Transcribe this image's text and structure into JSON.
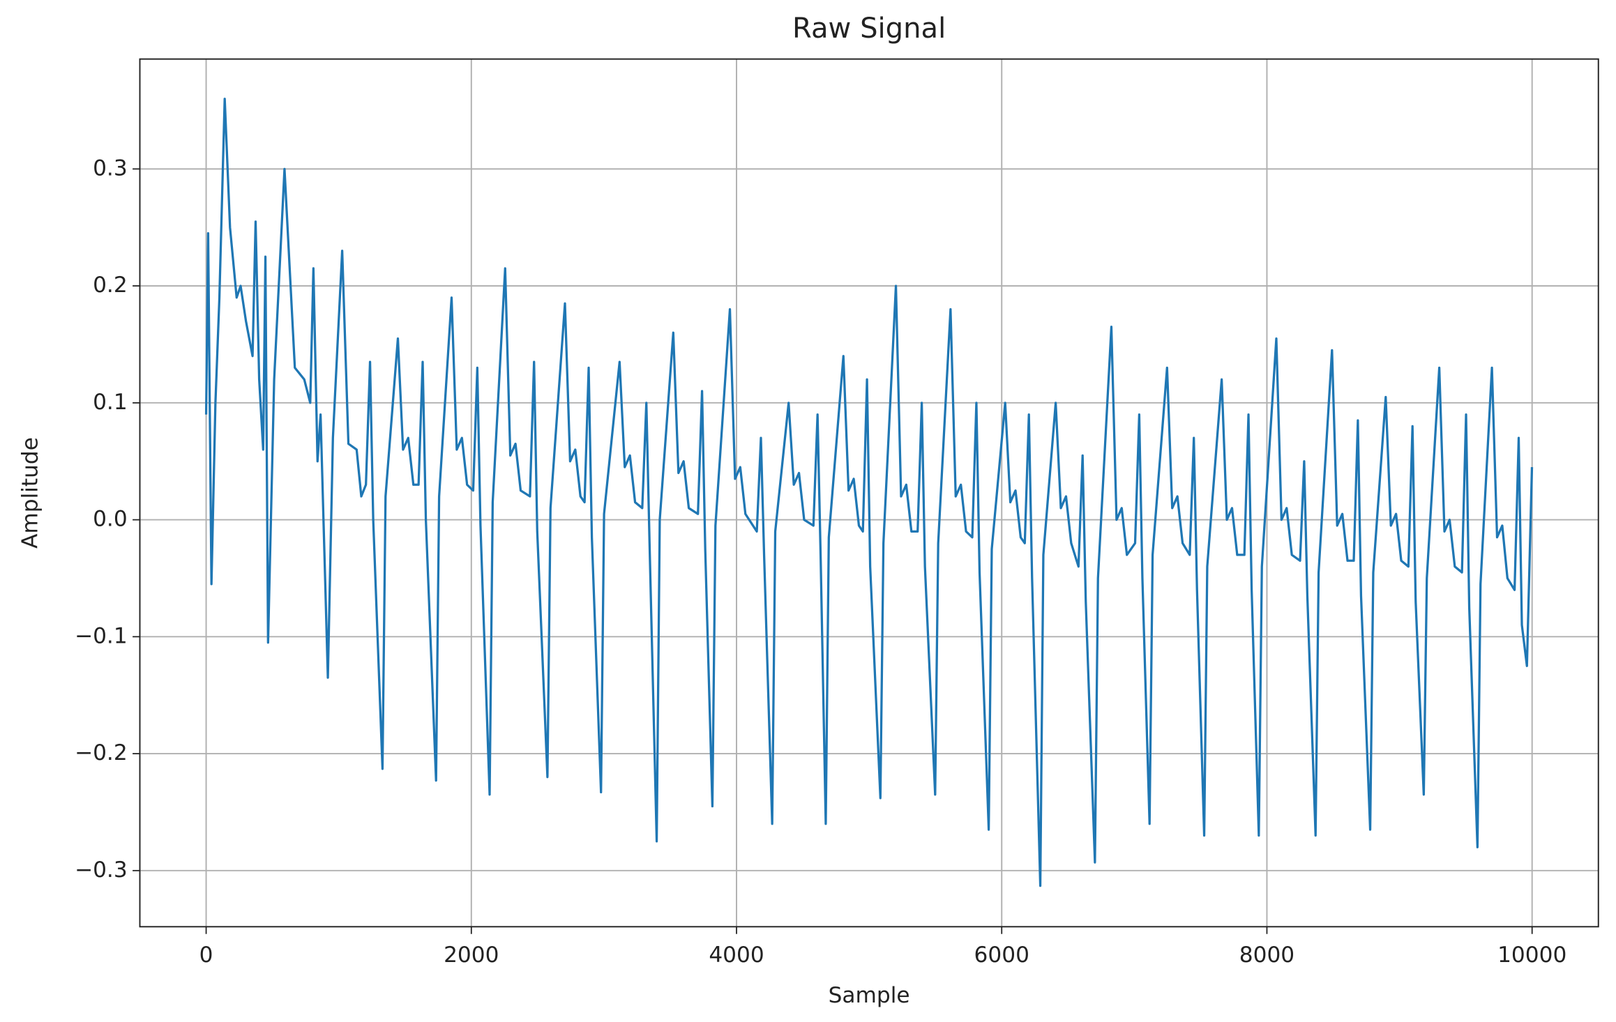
{
  "chart_data": {
    "type": "line",
    "title": "Raw Signal",
    "xlabel": "Sample",
    "ylabel": "Amplitude",
    "color": "#1f77b4",
    "grid": true,
    "xlim": [
      -500,
      10500
    ],
    "ylim": [
      -0.348,
      0.394
    ],
    "xticks": [
      0,
      2000,
      4000,
      6000,
      8000,
      10000
    ],
    "yticks": [
      {
        "value": -0.3,
        "label": "−0.3"
      },
      {
        "value": -0.2,
        "label": "−0.2"
      },
      {
        "value": -0.1,
        "label": "−0.1"
      },
      {
        "value": 0,
        "label": "0.0"
      },
      0.1,
      0.2,
      0.3
    ],
    "x": [
      0,
      15,
      40,
      70,
      100,
      140,
      180,
      230,
      260,
      300,
      350,
      373,
      400,
      430,
      447,
      467,
      513,
      591,
      669,
      740,
      785,
      809,
      840,
      863,
      918,
      956,
      1026,
      1073,
      1135,
      1170,
      1205,
      1236,
      1260,
      1330,
      1353,
      1446,
      1485,
      1524,
      1563,
      1602,
      1633,
      1657,
      1734,
      1757,
      1851,
      1890,
      1929,
      1968,
      2014,
      2045,
      2069,
      2138,
      2161,
      2255,
      2294,
      2333,
      2372,
      2442,
      2473,
      2497,
      2574,
      2597,
      2706,
      2745,
      2784,
      2823,
      2854,
      2885,
      2909,
      2978,
      3001,
      3118,
      3157,
      3196,
      3235,
      3289,
      3320,
      3344,
      3398,
      3421,
      3523,
      3562,
      3601,
      3640,
      3709,
      3740,
      3764,
      3818,
      3841,
      3950,
      3989,
      4028,
      4067,
      4153,
      4184,
      4208,
      4269,
      4292,
      4393,
      4432,
      4471,
      4510,
      4580,
      4611,
      4635,
      4673,
      4696,
      4806,
      4845,
      4884,
      4923,
      4953,
      4984,
      5008,
      5085,
      5108,
      5202,
      5241,
      5280,
      5319,
      5366,
      5397,
      5421,
      5498,
      5521,
      5614,
      5653,
      5692,
      5731,
      5778,
      5809,
      5833,
      5902,
      5925,
      6026,
      6065,
      6104,
      6143,
      6174,
      6205,
      6229,
      6291,
      6314,
      6407,
      6446,
      6485,
      6524,
      6579,
      6610,
      6634,
      6703,
      6726,
      6827,
      6866,
      6905,
      6944,
      7006,
      7037,
      7061,
      7115,
      7138,
      7247,
      7286,
      7325,
      7364,
      7418,
      7449,
      7473,
      7527,
      7550,
      7659,
      7698,
      7737,
      7776,
      7830,
      7861,
      7885,
      7939,
      7962,
      8071,
      8110,
      8149,
      8188,
      8250,
      8281,
      8305,
      8367,
      8390,
      8491,
      8530,
      8569,
      8608,
      8655,
      8686,
      8710,
      8779,
      8802,
      8896,
      8935,
      8974,
      9013,
      9067,
      9098,
      9122,
      9183,
      9206,
      9300,
      9339,
      9378,
      9417,
      9471,
      9502,
      9526,
      9588,
      9611,
      9697,
      9736,
      9775,
      9814,
      9868,
      9899,
      9923,
      9961,
      9999
    ],
    "values": [
      0.09,
      0.245,
      -0.055,
      0.1,
      0.19,
      0.36,
      0.25,
      0.19,
      0.2,
      0.17,
      0.14,
      0.255,
      0.12,
      0.06,
      0.225,
      -0.105,
      0.12,
      0.3,
      0.13,
      0.12,
      0.1,
      0.215,
      0.05,
      0.09,
      -0.135,
      0.07,
      0.23,
      0.065,
      0.06,
      0.02,
      0.03,
      0.135,
      0,
      -0.213,
      0.02,
      0.155,
      0.06,
      0.07,
      0.03,
      0.03,
      0.135,
      0,
      -0.223,
      0.02,
      0.19,
      0.06,
      0.07,
      0.03,
      0.025,
      0.13,
      -0.005,
      -0.235,
      0.015,
      0.215,
      0.055,
      0.065,
      0.025,
      0.02,
      0.135,
      -0.01,
      -0.22,
      0.01,
      0.185,
      0.05,
      0.06,
      0.02,
      0.015,
      0.13,
      -0.015,
      -0.233,
      0.005,
      0.135,
      0.045,
      0.055,
      0.015,
      0.01,
      0.1,
      -0.02,
      -0.275,
      0,
      0.16,
      0.04,
      0.05,
      0.01,
      0.005,
      0.11,
      -0.025,
      -0.245,
      -0.005,
      0.18,
      0.035,
      0.045,
      0.005,
      -0.01,
      0.07,
      -0.03,
      -0.26,
      -0.01,
      0.1,
      0.03,
      0.04,
      0,
      -0.005,
      0.09,
      -0.035,
      -0.26,
      -0.015,
      0.14,
      0.025,
      0.035,
      -0.005,
      -0.01,
      0.12,
      -0.04,
      -0.238,
      -0.02,
      0.2,
      0.02,
      0.03,
      -0.01,
      -0.01,
      0.1,
      -0.04,
      -0.235,
      -0.02,
      0.18,
      0.02,
      0.03,
      -0.01,
      -0.015,
      0.1,
      -0.045,
      -0.265,
      -0.025,
      0.1,
      0.015,
      0.025,
      -0.015,
      -0.02,
      0.09,
      -0.05,
      -0.313,
      -0.03,
      0.1,
      0.01,
      0.02,
      -0.02,
      -0.04,
      0.055,
      -0.07,
      -0.293,
      -0.05,
      0.165,
      0,
      0.01,
      -0.03,
      -0.02,
      0.09,
      -0.05,
      -0.26,
      -0.03,
      0.13,
      0.01,
      0.02,
      -0.02,
      -0.03,
      0.07,
      -0.06,
      -0.27,
      -0.04,
      0.12,
      0,
      0.01,
      -0.03,
      -0.03,
      0.09,
      -0.06,
      -0.27,
      -0.04,
      0.155,
      0,
      0.01,
      -0.03,
      -0.035,
      0.05,
      -0.065,
      -0.27,
      -0.045,
      0.145,
      -0.005,
      0.005,
      -0.035,
      -0.035,
      0.085,
      -0.065,
      -0.265,
      -0.045,
      0.105,
      -0.005,
      0.005,
      -0.035,
      -0.04,
      0.08,
      -0.07,
      -0.235,
      -0.05,
      0.13,
      -0.01,
      0,
      -0.04,
      -0.045,
      0.09,
      -0.075,
      -0.28,
      -0.055,
      0.13,
      -0.015,
      -0.005,
      -0.05,
      -0.06,
      0.07,
      -0.09,
      -0.125,
      0.045
    ]
  }
}
